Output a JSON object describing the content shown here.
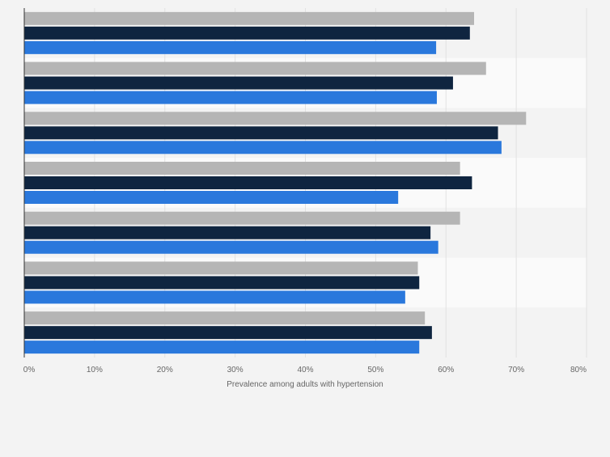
{
  "chart_data": {
    "type": "bar",
    "orientation": "horizontal",
    "title": "",
    "xlabel": "Prevalence among adults with hypertension",
    "ylabel": "",
    "xlim": [
      0,
      80
    ],
    "x_ticks": [
      "0%",
      "10%",
      "20%",
      "30%",
      "40%",
      "50%",
      "60%",
      "70%",
      "80%"
    ],
    "grid": true,
    "legend": "none",
    "categories": [
      "",
      "",
      "",
      "",
      "",
      "",
      ""
    ],
    "series": [
      {
        "color": "#b5b5b5",
        "values": [
          64,
          65.7,
          71.4,
          62,
          62,
          56,
          57
        ]
      },
      {
        "color": "#0f2540",
        "values": [
          63.4,
          61,
          67.4,
          63.7,
          57.8,
          56.2,
          58
        ]
      },
      {
        "color": "#2a78dc",
        "values": [
          58.6,
          58.7,
          67.9,
          53.2,
          58.9,
          54.2,
          56.2
        ]
      }
    ]
  }
}
